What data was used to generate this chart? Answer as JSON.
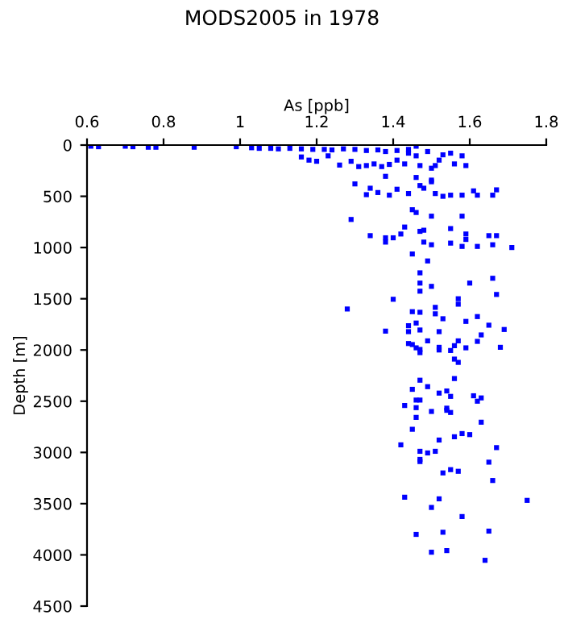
{
  "chart_data": {
    "type": "scatter",
    "title": "MODS2005 in 1978",
    "xlabel": "As [ppb]",
    "ylabel": "Depth [m]",
    "xlim": [
      0.6,
      1.8
    ],
    "xticks": [
      0.6,
      0.8,
      1,
      1.2,
      1.4,
      1.6,
      1.8
    ],
    "ylim": [
      4500,
      0
    ],
    "yticks": [
      0,
      500,
      1000,
      1500,
      2000,
      2500,
      3000,
      3500,
      4000,
      4500
    ],
    "grid": false,
    "marker": "square",
    "series": [
      {
        "color": "#0000ff",
        "x": [
          0.61,
          0.63,
          0.7,
          0.72,
          0.76,
          0.78,
          0.88,
          0.99,
          1.03,
          1.05,
          1.08,
          1.1,
          1.13,
          1.16,
          1.19,
          1.22,
          1.24,
          1.27,
          1.3,
          1.33,
          1.36,
          1.38,
          1.41,
          1.44,
          1.46,
          1.16,
          1.18,
          1.2,
          1.23,
          1.26,
          1.29,
          1.31,
          1.33,
          1.35,
          1.37,
          1.39,
          1.41,
          1.43,
          1.44,
          1.46,
          1.49,
          1.53,
          1.55,
          1.58,
          1.47,
          1.5,
          1.51,
          1.52,
          1.56,
          1.59,
          1.46,
          1.5,
          1.3,
          1.34,
          1.38,
          1.33,
          1.36,
          1.39,
          1.41,
          1.44,
          1.47,
          1.48,
          1.5,
          1.51,
          1.53,
          1.55,
          1.58,
          1.62,
          1.66,
          1.67,
          1.61,
          1.45,
          1.46,
          1.5,
          1.58,
          1.29,
          1.34,
          1.38,
          1.38,
          1.4,
          1.42,
          1.43,
          1.47,
          1.48,
          1.48,
          1.5,
          1.55,
          1.59,
          1.55,
          1.58,
          1.59,
          1.62,
          1.65,
          1.67,
          1.66,
          1.71,
          1.45,
          1.49,
          1.47,
          1.47,
          1.5,
          1.47,
          1.6,
          1.66,
          1.67,
          1.57,
          1.57,
          1.45,
          1.47,
          1.51,
          1.51,
          1.53,
          1.59,
          1.62,
          1.65,
          1.69,
          1.63,
          1.62,
          1.46,
          1.44,
          1.44,
          1.47,
          1.52,
          1.49,
          1.44,
          1.45,
          1.46,
          1.47,
          1.47,
          1.52,
          1.52,
          1.55,
          1.56,
          1.57,
          1.56,
          1.57,
          1.59,
          1.68,
          1.47,
          1.49,
          1.45,
          1.46,
          1.47,
          1.52,
          1.54,
          1.55,
          1.43,
          1.46,
          1.5,
          1.54,
          1.54,
          1.55,
          1.56,
          1.61,
          1.62,
          1.63,
          1.46,
          1.63,
          1.45,
          1.52,
          1.56,
          1.58,
          1.6,
          1.42,
          1.47,
          1.49,
          1.51,
          1.67,
          1.47,
          1.47,
          1.65,
          1.28,
          1.38,
          1.4,
          1.55,
          1.53,
          1.57,
          1.66,
          1.43,
          1.52,
          1.5,
          1.58,
          1.75,
          1.46,
          1.53,
          1.65,
          1.5,
          1.54,
          1.64
        ],
        "values": [
          11,
          16,
          11,
          16,
          21,
          21,
          21,
          16,
          26,
          32,
          32,
          37,
          32,
          37,
          42,
          42,
          47,
          37,
          42,
          53,
          47,
          63,
          53,
          42,
          11,
          116,
          147,
          158,
          105,
          195,
          158,
          210,
          200,
          184,
          210,
          189,
          147,
          184,
          79,
          105,
          63,
          95,
          79,
          105,
          200,
          226,
          200,
          147,
          184,
          200,
          316,
          342,
          379,
          421,
          305,
          484,
          463,
          489,
          431,
          473,
          395,
          421,
          358,
          473,
          500,
          489,
          489,
          489,
          489,
          437,
          447,
          631,
          658,
          694,
          694,
          726,
          884,
          905,
          947,
          905,
          868,
          800,
          842,
          831,
          947,
          973,
          815,
          868,
          957,
          989,
          921,
          989,
          884,
          884,
          973,
          1000,
          1063,
          1131,
          1247,
          1347,
          1379,
          1426,
          1347,
          1300,
          1458,
          1500,
          1553,
          1626,
          1632,
          1584,
          1647,
          1695,
          1721,
          1674,
          1758,
          1800,
          1853,
          1916,
          1737,
          1763,
          1821,
          1805,
          1821,
          1911,
          1937,
          1947,
          1979,
          2026,
          1995,
          1974,
          2000,
          2005,
          1958,
          1911,
          2089,
          2121,
          1979,
          1974,
          2295,
          2358,
          2384,
          2489,
          2489,
          2421,
          2400,
          2453,
          2542,
          2563,
          2600,
          2568,
          2589,
          2610,
          2279,
          2447,
          2500,
          2468,
          2658,
          2705,
          2774,
          2879,
          2847,
          2816,
          2826,
          2926,
          2989,
          3005,
          2989,
          2953,
          3068,
          3089,
          3095,
          1600,
          1816,
          1505,
          3168,
          3200,
          3184,
          3274,
          3437,
          3453,
          3537,
          3626,
          3468,
          3800,
          3779,
          3768,
          3974,
          3958,
          4053
        ]
      }
    ]
  }
}
